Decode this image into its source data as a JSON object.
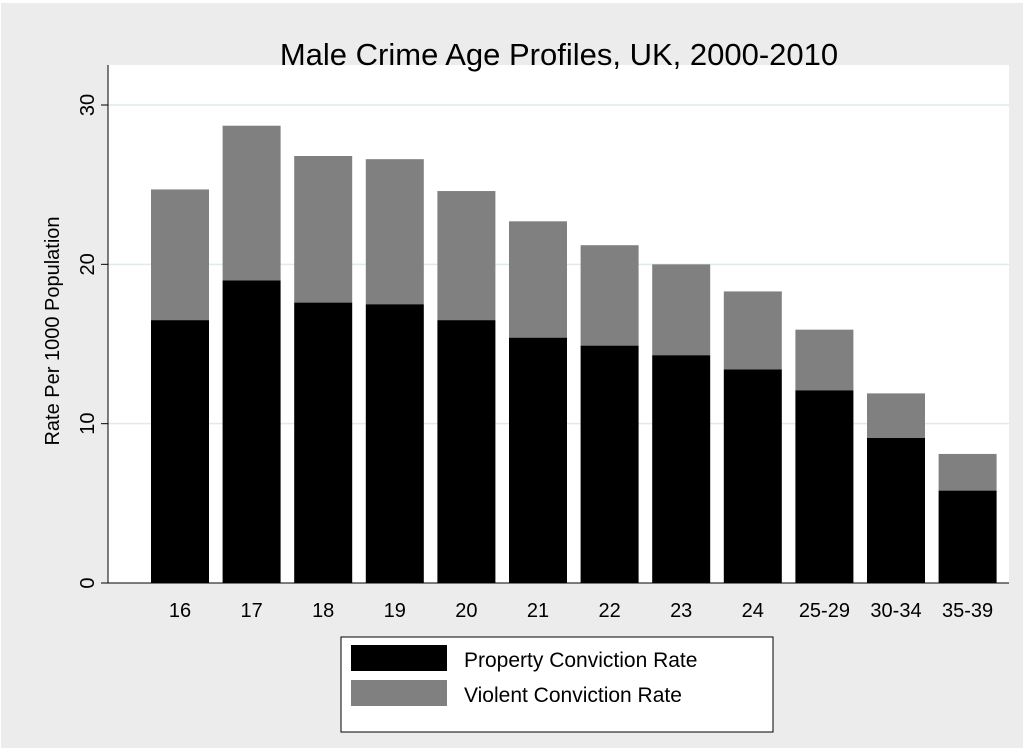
{
  "chart_data": {
    "type": "bar",
    "stacked": true,
    "title": "Male Crime Age Profiles, UK, 2000-2010",
    "xlabel": "",
    "ylabel": "Rate Per 1000 Population",
    "ylim": [
      0,
      30
    ],
    "yticks": [
      0,
      10,
      20,
      30
    ],
    "grid": true,
    "legend_position": "bottom",
    "categories": [
      "16",
      "17",
      "18",
      "19",
      "20",
      "21",
      "22",
      "23",
      "24",
      "25-29",
      "30-34",
      "35-39"
    ],
    "series": [
      {
        "name": "Property Conviction Rate",
        "color": "#000000",
        "values": [
          16.5,
          19.0,
          17.6,
          17.5,
          16.5,
          15.4,
          14.9,
          14.3,
          13.4,
          12.1,
          9.1,
          5.8
        ]
      },
      {
        "name": "Violent Conviction Rate",
        "color": "#808080",
        "values": [
          8.2,
          9.7,
          9.2,
          9.1,
          8.1,
          7.3,
          6.3,
          5.7,
          4.9,
          3.8,
          2.8,
          2.3
        ]
      }
    ]
  },
  "colors": {
    "figure_background": "#ececec",
    "plot_background": "#ffffff",
    "gridline": "#e0ebe8"
  }
}
